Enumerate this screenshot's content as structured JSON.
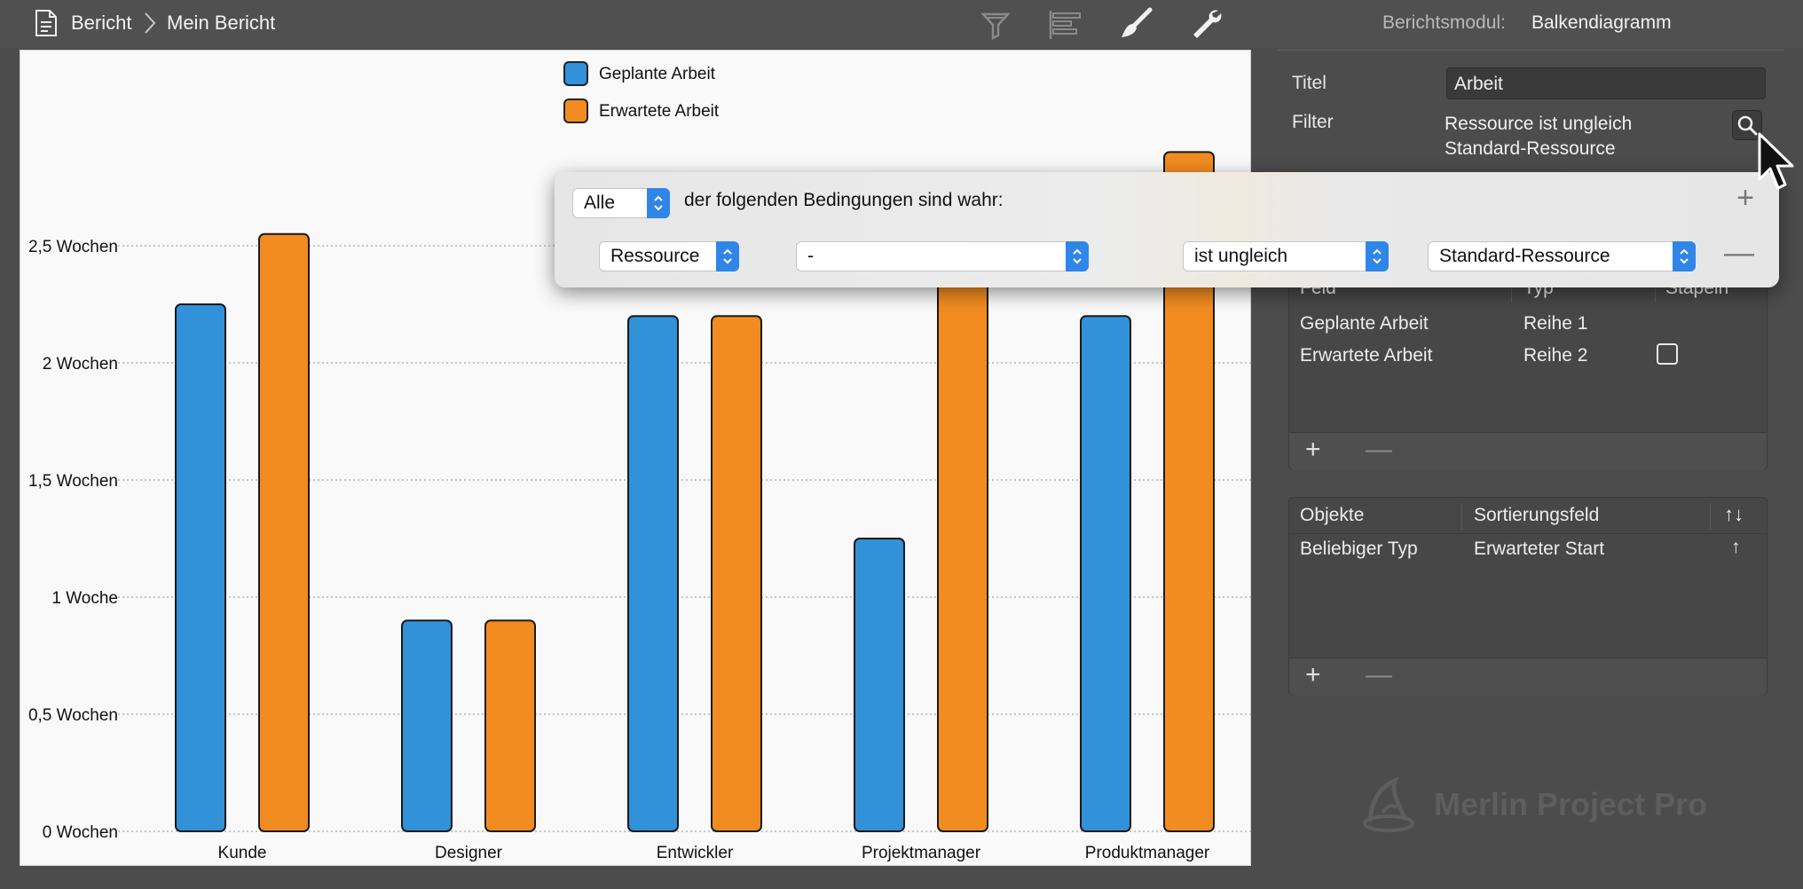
{
  "breadcrumb": {
    "root": "Bericht",
    "current": "Mein Bericht"
  },
  "toolbar_icons": [
    "filter-icon",
    "bar-layout-icon",
    "brush-icon",
    "wrench-icon"
  ],
  "module": {
    "label": "Berichtsmodul:",
    "value": "Balkendiagramm"
  },
  "inspector": {
    "title_label": "Titel",
    "title_value": "Arbeit",
    "filter_label": "Filter",
    "filter_text_line1": "Ressource ist ungleich",
    "filter_text_line2": "Standard-Ressource",
    "fields_table": {
      "headers": [
        "Feld",
        "Typ",
        "Stapeln"
      ],
      "rows": [
        {
          "feld": "Geplante Arbeit",
          "typ": "Reihe 1"
        },
        {
          "feld": "Erwartete Arbeit",
          "typ": "Reihe 2"
        }
      ],
      "add": "+",
      "remove": "—"
    },
    "objects_table": {
      "headers": [
        "Objekte",
        "Sortierungsfeld",
        "↑↓"
      ],
      "rows": [
        {
          "objekt": "Beliebiger Typ",
          "sort": "Erwarteter Start",
          "dir": "↑"
        }
      ],
      "add": "+",
      "remove": "—"
    }
  },
  "filter_popover": {
    "mode": "Alle",
    "condition_text": "der folgenden Bedingungen sind wahr:",
    "add": "+",
    "remove": "—",
    "rule": {
      "field": "Ressource",
      "subfield": "-",
      "operator": "ist ungleich",
      "value": "Standard-Ressource"
    }
  },
  "watermark": "Merlin Project Pro",
  "colors": {
    "series1": "#3191d9",
    "series2": "#f28c20"
  },
  "chart_data": {
    "type": "bar",
    "categories": [
      "Kunde",
      "Designer",
      "Entwickler",
      "Projektmanager",
      "Produktmanager"
    ],
    "series": [
      {
        "name": "Geplante Arbeit",
        "values": [
          2.25,
          0.9,
          2.2,
          1.25,
          2.2
        ]
      },
      {
        "name": "Erwartete Arbeit",
        "values": [
          2.55,
          0.9,
          2.2,
          2.75,
          2.9
        ]
      }
    ],
    "yticks": [
      0,
      0.5,
      1,
      1.5,
      2,
      2.5
    ],
    "ytick_labels": [
      "0 Wochen",
      "0,5 Wochen",
      "1 Woche",
      "1,5 Wochen",
      "2 Wochen",
      "2,5 Wochen"
    ],
    "ylim": [
      0,
      2.9
    ],
    "grid": true,
    "legend": "top-center"
  }
}
